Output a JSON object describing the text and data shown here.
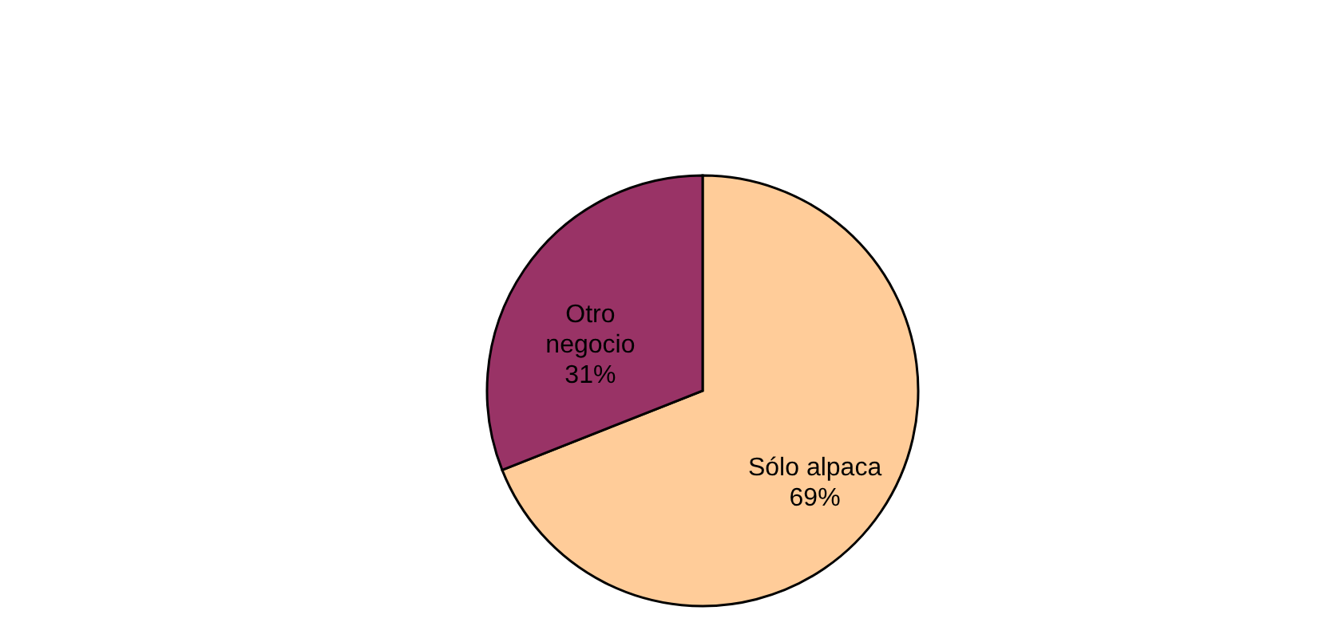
{
  "chart_data": {
    "type": "pie",
    "categories": [
      "Sólo alpaca",
      "Otro negocio"
    ],
    "values": [
      69,
      31
    ],
    "value_labels": [
      "69%",
      "31%"
    ],
    "colors": [
      "#ffcc99",
      "#993366"
    ]
  }
}
